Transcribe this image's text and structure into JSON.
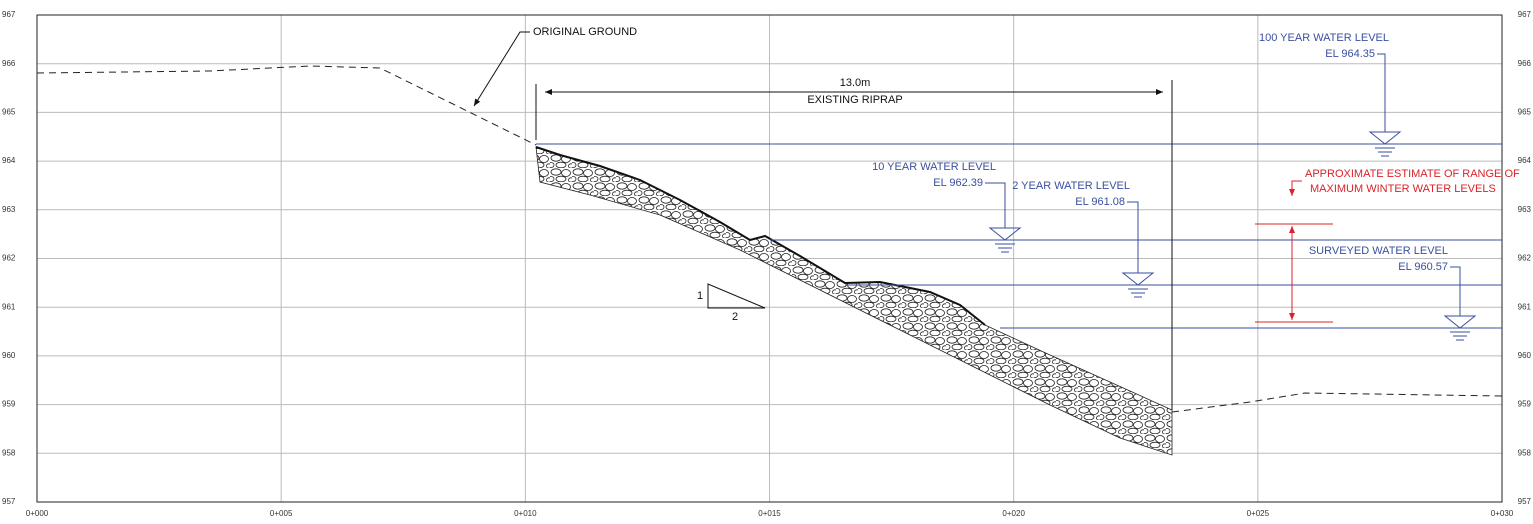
{
  "y_axis": {
    "labels": [
      "967",
      "966",
      "965",
      "964",
      "963",
      "962",
      "961",
      "960",
      "959",
      "958",
      "957"
    ]
  },
  "x_axis": {
    "labels": [
      "0+000",
      "0+005",
      "0+010",
      "0+015",
      "0+020",
      "0+025",
      "0+030"
    ]
  },
  "annotations": {
    "original_ground": "ORIGINAL GROUND",
    "dimension": "13.0m",
    "riprap": "EXISTING RIPRAP",
    "slope_rise": "1",
    "slope_run": "2",
    "year100": {
      "title": "100 YEAR WATER LEVEL",
      "elevation": "EL 964.35"
    },
    "year10": {
      "title": "10 YEAR WATER LEVEL",
      "elevation": "EL 962.39"
    },
    "year2": {
      "title": "2 YEAR WATER LEVEL",
      "elevation": "EL 961.08"
    },
    "surveyed": {
      "title": "SURVEYED WATER LEVEL",
      "elevation": "EL 960.57"
    },
    "range_note": [
      "APPROXIMATE ESTIMATE OF RANGE OF",
      "MAXIMUM WINTER WATER LEVELS"
    ]
  }
}
